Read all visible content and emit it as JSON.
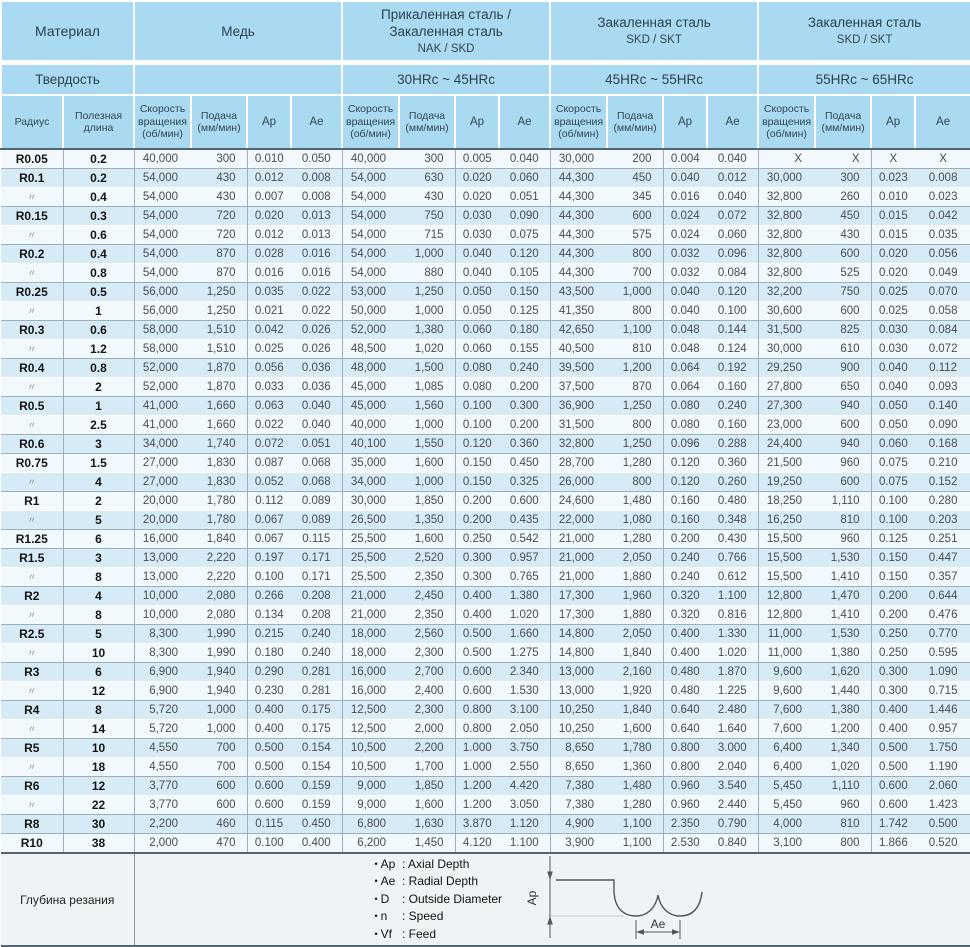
{
  "table": {
    "material_label": "Материал",
    "hardness_label": "Твердость",
    "groups": [
      {
        "title_lines": [
          "Медь"
        ],
        "subtitle": "",
        "hardness": ""
      },
      {
        "title_lines": [
          "Прикаленная сталь /",
          "Закаленная сталь"
        ],
        "subtitle": "NAK / SKD",
        "hardness": "30HRc ~ 45HRc"
      },
      {
        "title_lines": [
          "Закаленная сталь"
        ],
        "subtitle": "SKD / SKT",
        "hardness": "45HRc ~ 55HRc"
      },
      {
        "title_lines": [
          "Закаленная сталь"
        ],
        "subtitle": "SKD / SKT",
        "hardness": "55HRc ~ 65HRc"
      }
    ],
    "subcolumns": {
      "radius": "Радиус",
      "length": "Полезная длина",
      "speed": "Скорость вращения (об/мин)",
      "feed": "Подача (мм/мин)",
      "ap": "Ap",
      "ae": "Ae"
    },
    "ditto_mark": "〃",
    "rows": [
      [
        "R0.05",
        "0.2",
        "40,000",
        "300",
        "0.010",
        "0.050",
        "40,000",
        "300",
        "0.005",
        "0.040",
        "30,000",
        "200",
        "0.004",
        "0.040",
        "X",
        "X",
        "X",
        "X"
      ],
      [
        "R0.1",
        "0.2",
        "54,000",
        "430",
        "0.012",
        "0.008",
        "54,000",
        "630",
        "0.020",
        "0.060",
        "44,300",
        "450",
        "0.040",
        "0.012",
        "30,000",
        "300",
        "0.023",
        "0.008"
      ],
      [
        "〃",
        "0.4",
        "54,000",
        "430",
        "0.007",
        "0.008",
        "54,000",
        "430",
        "0.020",
        "0.051",
        "44,300",
        "345",
        "0.016",
        "0.040",
        "32,800",
        "260",
        "0.010",
        "0.023"
      ],
      [
        "R0.15",
        "0.3",
        "54,000",
        "720",
        "0.020",
        "0.013",
        "54,000",
        "750",
        "0.030",
        "0.090",
        "44,300",
        "600",
        "0.024",
        "0.072",
        "32,800",
        "450",
        "0.015",
        "0.042"
      ],
      [
        "〃",
        "0.6",
        "54,000",
        "720",
        "0.012",
        "0.013",
        "54,000",
        "715",
        "0.030",
        "0.075",
        "44,300",
        "575",
        "0.024",
        "0.060",
        "32,800",
        "430",
        "0.015",
        "0.035"
      ],
      [
        "R0.2",
        "0.4",
        "54,000",
        "870",
        "0.028",
        "0.016",
        "54,000",
        "1,000",
        "0.040",
        "0.120",
        "44,300",
        "800",
        "0.032",
        "0.096",
        "32,800",
        "600",
        "0.020",
        "0.056"
      ],
      [
        "〃",
        "0.8",
        "54,000",
        "870",
        "0.016",
        "0.016",
        "54,000",
        "880",
        "0.040",
        "0.105",
        "44,300",
        "700",
        "0.032",
        "0.084",
        "32,800",
        "525",
        "0.020",
        "0.049"
      ],
      [
        "R0.25",
        "0.5",
        "56,000",
        "1,250",
        "0.035",
        "0.022",
        "53,000",
        "1,250",
        "0.050",
        "0.150",
        "43,500",
        "1,000",
        "0.040",
        "0.120",
        "32,200",
        "750",
        "0.025",
        "0.070"
      ],
      [
        "〃",
        "1",
        "56,000",
        "1,250",
        "0.021",
        "0.022",
        "50,000",
        "1,000",
        "0.050",
        "0.125",
        "41,350",
        "800",
        "0.040",
        "0.100",
        "30,600",
        "600",
        "0.025",
        "0.058"
      ],
      [
        "R0.3",
        "0.6",
        "58,000",
        "1,510",
        "0.042",
        "0.026",
        "52,000",
        "1,380",
        "0.060",
        "0.180",
        "42,650",
        "1,100",
        "0.048",
        "0.144",
        "31,500",
        "825",
        "0.030",
        "0.084"
      ],
      [
        "〃",
        "1.2",
        "58,000",
        "1,510",
        "0.025",
        "0.026",
        "48,500",
        "1,020",
        "0.060",
        "0.155",
        "40,500",
        "810",
        "0.048",
        "0.124",
        "30,000",
        "610",
        "0.030",
        "0.072"
      ],
      [
        "R0.4",
        "0.8",
        "52,000",
        "1,870",
        "0.056",
        "0.036",
        "48,000",
        "1,500",
        "0.080",
        "0.240",
        "39,500",
        "1,200",
        "0.064",
        "0.192",
        "29,250",
        "900",
        "0.040",
        "0.112"
      ],
      [
        "〃",
        "2",
        "52,000",
        "1,870",
        "0.033",
        "0.036",
        "45,000",
        "1,085",
        "0.080",
        "0.200",
        "37,500",
        "870",
        "0.064",
        "0.160",
        "27,800",
        "650",
        "0.040",
        "0.093"
      ],
      [
        "R0.5",
        "1",
        "41,000",
        "1,660",
        "0.063",
        "0.040",
        "45,000",
        "1,560",
        "0.100",
        "0.300",
        "36,900",
        "1,250",
        "0.080",
        "0.240",
        "27,300",
        "940",
        "0.050",
        "0.140"
      ],
      [
        "〃",
        "2.5",
        "41,000",
        "1,660",
        "0.022",
        "0.040",
        "40,000",
        "1,000",
        "0.100",
        "0.200",
        "31,500",
        "800",
        "0.080",
        "0.160",
        "23,000",
        "600",
        "0.050",
        "0.090"
      ],
      [
        "R0.6",
        "3",
        "34,000",
        "1,740",
        "0.072",
        "0.051",
        "40,100",
        "1,550",
        "0.120",
        "0.360",
        "32,800",
        "1,250",
        "0.096",
        "0.288",
        "24,400",
        "940",
        "0.060",
        "0.168"
      ],
      [
        "R0.75",
        "1.5",
        "27,000",
        "1,830",
        "0.087",
        "0.068",
        "35,000",
        "1,600",
        "0.150",
        "0.450",
        "28,700",
        "1,280",
        "0.120",
        "0.360",
        "21,500",
        "960",
        "0.075",
        "0.210"
      ],
      [
        "〃",
        "4",
        "27,000",
        "1,830",
        "0.052",
        "0.068",
        "34,000",
        "1,000",
        "0.150",
        "0.325",
        "26,000",
        "800",
        "0.120",
        "0.260",
        "19,250",
        "600",
        "0.075",
        "0.152"
      ],
      [
        "R1",
        "2",
        "20,000",
        "1,780",
        "0.112",
        "0.089",
        "30,000",
        "1,850",
        "0.200",
        "0.600",
        "24,600",
        "1,480",
        "0.160",
        "0.480",
        "18,250",
        "1,110",
        "0.100",
        "0.280"
      ],
      [
        "〃",
        "5",
        "20,000",
        "1,780",
        "0.067",
        "0.089",
        "26,500",
        "1,350",
        "0.200",
        "0.435",
        "22,000",
        "1,080",
        "0.160",
        "0.348",
        "16,250",
        "810",
        "0.100",
        "0.203"
      ],
      [
        "R1.25",
        "6",
        "16,000",
        "1,840",
        "0.067",
        "0.115",
        "25,500",
        "1,600",
        "0.250",
        "0.542",
        "21,000",
        "1,280",
        "0.200",
        "0.430",
        "15,500",
        "960",
        "0.125",
        "0.251"
      ],
      [
        "R1.5",
        "3",
        "13,000",
        "2,220",
        "0.197",
        "0.171",
        "25,500",
        "2,520",
        "0.300",
        "0.957",
        "21,000",
        "2,050",
        "0.240",
        "0.766",
        "15,500",
        "1,530",
        "0.150",
        "0.447"
      ],
      [
        "〃",
        "8",
        "13,000",
        "2,220",
        "0.100",
        "0.171",
        "25,500",
        "2,350",
        "0.300",
        "0.765",
        "21,000",
        "1,880",
        "0.240",
        "0.612",
        "15,500",
        "1,410",
        "0.150",
        "0.357"
      ],
      [
        "R2",
        "4",
        "10,000",
        "2,080",
        "0.266",
        "0.208",
        "21,000",
        "2,450",
        "0.400",
        "1.380",
        "17,300",
        "1,960",
        "0.320",
        "1.100",
        "12,800",
        "1,470",
        "0.200",
        "0.644"
      ],
      [
        "〃",
        "8",
        "10,000",
        "2,080",
        "0.134",
        "0.208",
        "21,000",
        "2,350",
        "0.400",
        "1.020",
        "17,300",
        "1,880",
        "0.320",
        "0.816",
        "12,800",
        "1,410",
        "0.200",
        "0.476"
      ],
      [
        "R2.5",
        "5",
        "8,300",
        "1,990",
        "0.215",
        "0.240",
        "18,000",
        "2,560",
        "0.500",
        "1.660",
        "14,800",
        "2,050",
        "0.400",
        "1.330",
        "11,000",
        "1,530",
        "0.250",
        "0.770"
      ],
      [
        "〃",
        "10",
        "8,300",
        "1,990",
        "0.180",
        "0.240",
        "18,000",
        "2,300",
        "0.500",
        "1.275",
        "14,800",
        "1,840",
        "0.400",
        "1.020",
        "11,000",
        "1,380",
        "0.250",
        "0.595"
      ],
      [
        "R3",
        "6",
        "6,900",
        "1,940",
        "0.290",
        "0.281",
        "16,000",
        "2,700",
        "0.600",
        "2.340",
        "13,000",
        "2,160",
        "0.480",
        "1.870",
        "9,600",
        "1,620",
        "0.300",
        "1.090"
      ],
      [
        "〃",
        "12",
        "6,900",
        "1,940",
        "0.230",
        "0.281",
        "16,000",
        "2,400",
        "0.600",
        "1.530",
        "13,000",
        "1,920",
        "0.480",
        "1.225",
        "9,600",
        "1,440",
        "0.300",
        "0.715"
      ],
      [
        "R4",
        "8",
        "5,720",
        "1,000",
        "0.400",
        "0.175",
        "12,500",
        "2,300",
        "0.800",
        "3.100",
        "10,250",
        "1,840",
        "0.640",
        "2.480",
        "7,600",
        "1,380",
        "0.400",
        "1.446"
      ],
      [
        "〃",
        "14",
        "5,720",
        "1,000",
        "0.400",
        "0.175",
        "12,500",
        "2,000",
        "0.800",
        "2.050",
        "10,250",
        "1,600",
        "0.640",
        "1.640",
        "7,600",
        "1,200",
        "0.400",
        "0.957"
      ],
      [
        "R5",
        "10",
        "4,550",
        "700",
        "0.500",
        "0.154",
        "10,500",
        "2,200",
        "1.000",
        "3.750",
        "8,650",
        "1,780",
        "0.800",
        "3.000",
        "6,400",
        "1,340",
        "0.500",
        "1.750"
      ],
      [
        "〃",
        "18",
        "4,550",
        "700",
        "0.500",
        "0.154",
        "10,500",
        "1,700",
        "1.000",
        "2.550",
        "8,650",
        "1,360",
        "0.800",
        "2.040",
        "6,400",
        "1,020",
        "0.500",
        "1.190"
      ],
      [
        "R6",
        "12",
        "3,770",
        "600",
        "0.600",
        "0.159",
        "9,000",
        "1,850",
        "1.200",
        "4.420",
        "7,380",
        "1,480",
        "0.960",
        "3.540",
        "5,450",
        "1,110",
        "0.600",
        "2.060"
      ],
      [
        "〃",
        "22",
        "3,770",
        "600",
        "0.600",
        "0.159",
        "9,000",
        "1,600",
        "1.200",
        "3.050",
        "7,380",
        "1,280",
        "0.960",
        "2.440",
        "5,450",
        "960",
        "0.600",
        "1.423"
      ],
      [
        "R8",
        "30",
        "2,200",
        "460",
        "0.115",
        "0.450",
        "6,800",
        "1,630",
        "3.870",
        "1.120",
        "4,900",
        "1,100",
        "2.350",
        "0.790",
        "4,000",
        "810",
        "1.742",
        "0.500"
      ],
      [
        "R10",
        "38",
        "2,000",
        "470",
        "0.100",
        "0.400",
        "6,200",
        "1,450",
        "4.120",
        "1.100",
        "3,900",
        "1,100",
        "2.530",
        "0.840",
        "3,100",
        "800",
        "1.866",
        "0.520"
      ]
    ]
  },
  "footer": {
    "label": "Глубина резания",
    "legend": [
      {
        "key": "Ap",
        "desc": "Axial Depth"
      },
      {
        "key": "Ae",
        "desc": "Radial Depth"
      },
      {
        "key": "D",
        "desc": "Outside Diameter"
      },
      {
        "key": "n",
        "desc": "Speed"
      },
      {
        "key": "Vf",
        "desc": "Feed"
      }
    ],
    "diagram": {
      "ap_label": "Ap",
      "ae_label": "Ae"
    }
  },
  "colors": {
    "header_bg": "#a9daf2",
    "stripe_light": "#f2f9fd",
    "stripe_blue": "#d7ebf7",
    "grid_line": "#9cb0ba",
    "dark_line": "#55656e"
  }
}
